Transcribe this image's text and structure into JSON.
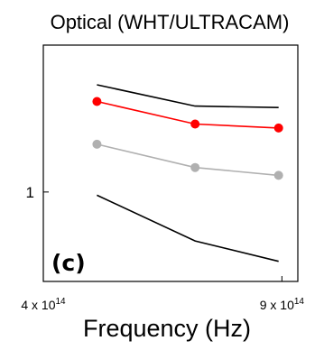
{
  "chart_data": {
    "type": "line",
    "title": "Optical (WHT/ULTRACAM)",
    "xlabel": "Frequency (Hz)",
    "ylabel": "",
    "panel_label": "(c)",
    "x_scale": "log",
    "y_scale": "log",
    "xlim": [
      400000000000000.0,
      950000000000000.0
    ],
    "ylim": [
      0.43,
      4.0
    ],
    "x_ticks": [
      {
        "value": 400000000000000.0,
        "mantissa": "4 x 10",
        "exponent": "14"
      },
      {
        "value": 900000000000000.0,
        "mantissa": "9 x 10",
        "exponent": "14"
      }
    ],
    "y_ticks": [
      {
        "value": 1,
        "label": "1"
      }
    ],
    "x": [
      480000000000000.0,
      670000000000000.0,
      890000000000000.0
    ],
    "series": [
      {
        "values": [
          2.75,
          2.25,
          2.22
        ],
        "color": "#000000",
        "marker": "none"
      },
      {
        "values": [
          2.35,
          1.9,
          1.83
        ],
        "color": "#ff0000",
        "marker": "circle"
      },
      {
        "values": [
          1.57,
          1.26,
          1.17
        ],
        "color": "#b0b0b0",
        "marker": "circle"
      },
      {
        "values": [
          0.97,
          0.63,
          0.52
        ],
        "color": "#000000",
        "marker": "none"
      }
    ],
    "grid": false,
    "legend": "none"
  }
}
